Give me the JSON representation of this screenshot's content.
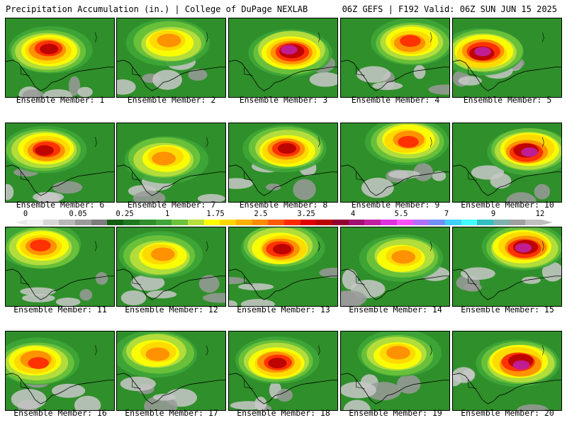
{
  "header": {
    "left": "Precipitation Accumulation (in.) | College of DuPage NEXLAB",
    "right": "06Z GEFS | F192 Valid: 06Z SUN JUN 15 2025"
  },
  "legend": {
    "ticks": [
      "0",
      "0.05",
      "0.25",
      "1",
      "1.75",
      "2.5",
      "3.25",
      "4",
      "5.5",
      "7",
      "9",
      "12"
    ],
    "colors": [
      "#f2f2f2",
      "#d6d6d6",
      "#b8b8b8",
      "#9a9a9a",
      "#7c7c7c",
      "#135f13",
      "#1f7a1f",
      "#2f8f2a",
      "#3fa637",
      "#6cc23a",
      "#b8e03c",
      "#ffff00",
      "#ffd700",
      "#ffb000",
      "#ff8c00",
      "#ff5a00",
      "#ff2a00",
      "#e00000",
      "#b80000",
      "#900030",
      "#a01070",
      "#c020a0",
      "#e030e0",
      "#ff50ff",
      "#b070ff",
      "#7090ff",
      "#40d0ff",
      "#40ffff",
      "#30c0c0",
      "#80b0b0",
      "#a0a0a0",
      "#c0c0c0"
    ]
  },
  "members": [
    {
      "label": "Ensemble Member: 1"
    },
    {
      "label": "Ensemble Member: 2"
    },
    {
      "label": "Ensemble Member: 3"
    },
    {
      "label": "Ensemble Member: 4"
    },
    {
      "label": "Ensemble Member: 5"
    },
    {
      "label": "Ensemble Member: 6"
    },
    {
      "label": "Ensemble Member: 7"
    },
    {
      "label": "Ensemble Member: 8"
    },
    {
      "label": "Ensemble Member: 9"
    },
    {
      "label": "Ensemble Member: 10"
    },
    {
      "label": "Ensemble Member: 11"
    },
    {
      "label": "Ensemble Member: 12"
    },
    {
      "label": "Ensemble Member: 13"
    },
    {
      "label": "Ensemble Member: 14"
    },
    {
      "label": "Ensemble Member: 15"
    },
    {
      "label": "Ensemble Member: 16"
    },
    {
      "label": "Ensemble Member: 17"
    },
    {
      "label": "Ensemble Member: 18"
    },
    {
      "label": "Ensemble Member: 19"
    },
    {
      "label": "Ensemble Member: 20"
    }
  ]
}
